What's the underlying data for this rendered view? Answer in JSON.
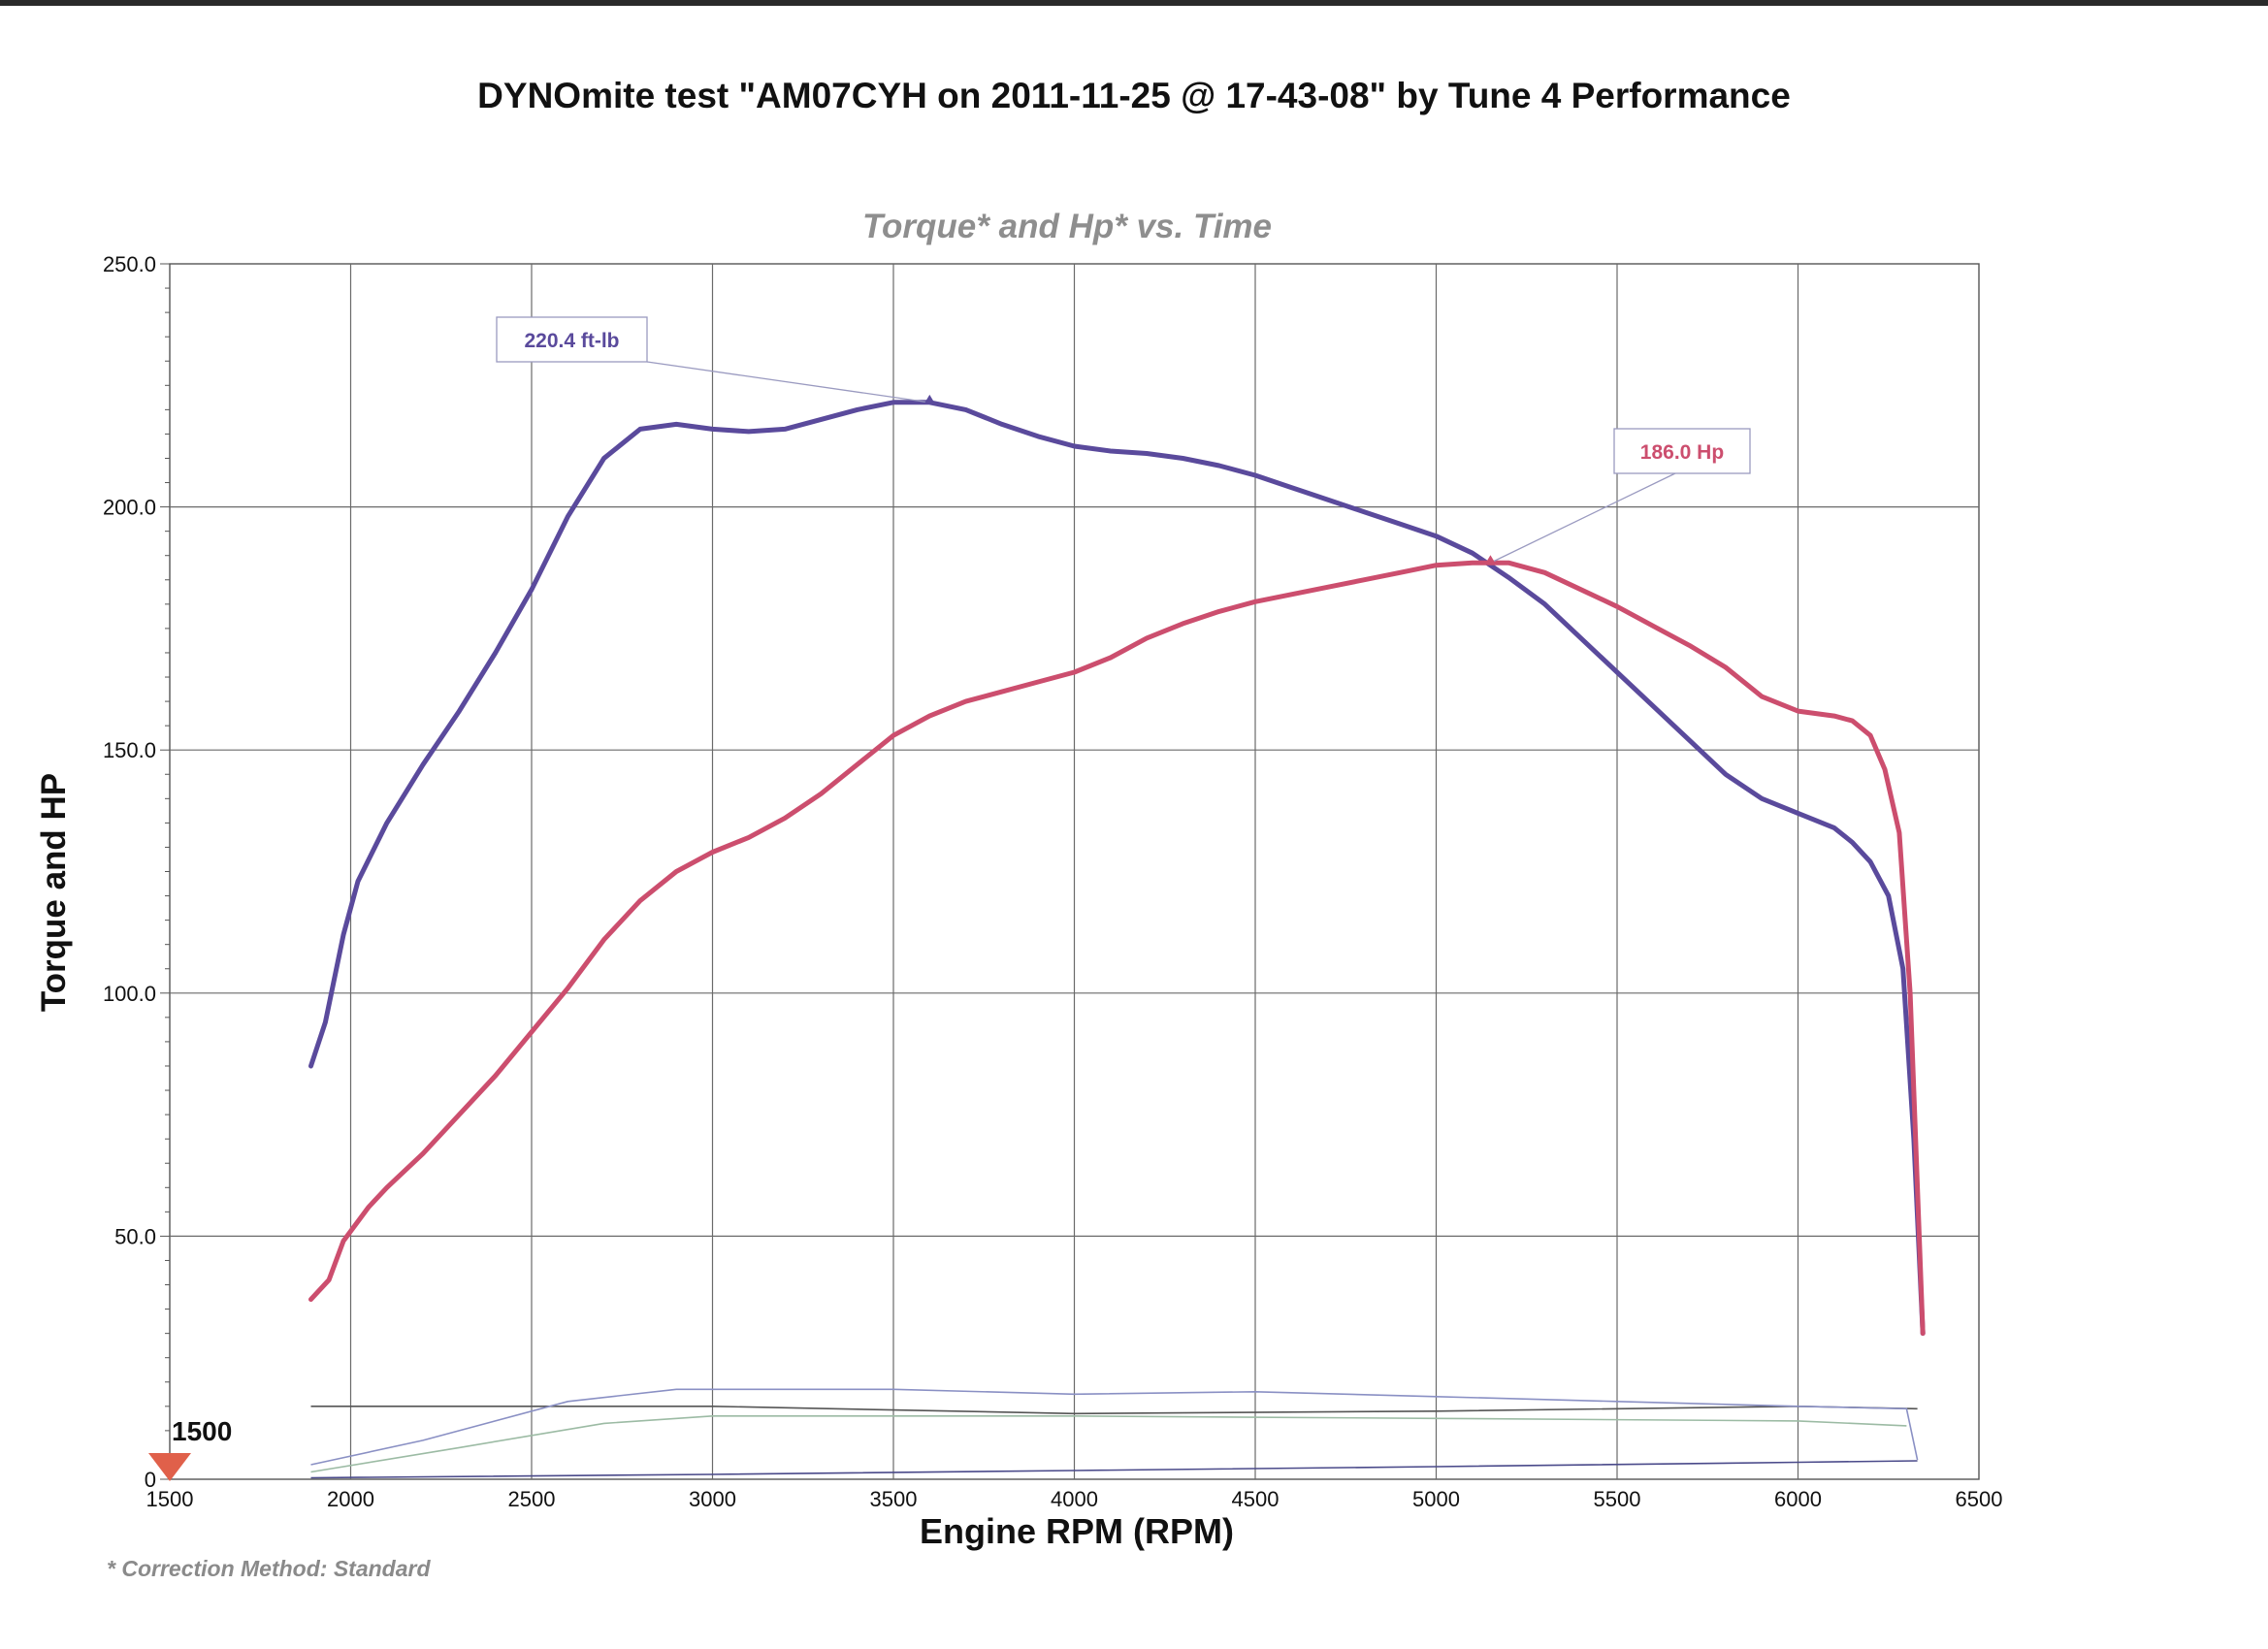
{
  "title": "DYNOmite test \"AM07CYH on 2011-11-25 @ 17-43-08\" by Tune 4 Performance",
  "footnote": "* Correction Method: Standard",
  "chart_data": {
    "type": "line",
    "title": "Torque* and Hp* vs. Time",
    "xlabel": "Engine RPM (RPM)",
    "ylabel": "Torque and HP",
    "xlim": [
      1500,
      6500
    ],
    "ylim": [
      0,
      250
    ],
    "x_ticks": [
      "1500",
      "2000",
      "2500",
      "3000",
      "3500",
      "4000",
      "4500",
      "5000",
      "5500",
      "6000",
      "6500"
    ],
    "y_ticks": [
      "250.0",
      "200.0",
      "150.0",
      "100.0",
      "50.0",
      "0"
    ],
    "grid": true,
    "start_marker_label": "1500",
    "series": [
      {
        "name": "Torque",
        "color": "#5a4a9c",
        "x": [
          1890,
          1930,
          1980,
          2020,
          2100,
          2200,
          2300,
          2400,
          2500,
          2600,
          2700,
          2800,
          2900,
          3000,
          3100,
          3200,
          3300,
          3400,
          3500,
          3600,
          3700,
          3800,
          3900,
          4000,
          4100,
          4200,
          4300,
          4400,
          4500,
          4600,
          4700,
          4800,
          4900,
          5000,
          5100,
          5200,
          5300,
          5400,
          5500,
          5600,
          5700,
          5800,
          5900,
          6000,
          6100,
          6150,
          6200,
          6250,
          6290,
          6320,
          6345
        ],
        "y": [
          85,
          94,
          112,
          123,
          135,
          147,
          158,
          170,
          183,
          198,
          210,
          216,
          217,
          216,
          215.5,
          216,
          218,
          220,
          221.5,
          221.5,
          220,
          217,
          214.5,
          212.5,
          211.5,
          211,
          210,
          208.5,
          206.5,
          204,
          201.5,
          199,
          196.5,
          194,
          190.5,
          185.5,
          180,
          173,
          166,
          159,
          152,
          145,
          140,
          137,
          134,
          131,
          127,
          120,
          105,
          70,
          30
        ]
      },
      {
        "name": "Hp",
        "color": "#cc4e6e",
        "x": [
          1890,
          1940,
          1980,
          2050,
          2100,
          2200,
          2300,
          2400,
          2500,
          2600,
          2700,
          2800,
          2900,
          3000,
          3100,
          3200,
          3300,
          3400,
          3500,
          3600,
          3700,
          3800,
          3900,
          4000,
          4100,
          4200,
          4300,
          4400,
          4500,
          4600,
          4700,
          4800,
          4900,
          5000,
          5100,
          5200,
          5300,
          5400,
          5500,
          5600,
          5700,
          5800,
          5900,
          6000,
          6100,
          6150,
          6200,
          6240,
          6280,
          6310,
          6330,
          6345
        ],
        "y": [
          37,
          41,
          49,
          56,
          60,
          67,
          75,
          83,
          92,
          101,
          111,
          119,
          125,
          129,
          132,
          136,
          141,
          147,
          153,
          157,
          160,
          162,
          164,
          166,
          169,
          173,
          176,
          178.5,
          180.5,
          182,
          183.5,
          185,
          186.5,
          188,
          188.5,
          188.5,
          186.5,
          183,
          179.5,
          175.5,
          171.5,
          167,
          161,
          158,
          157,
          156,
          153,
          146,
          133,
          100,
          60,
          30
        ]
      }
    ],
    "annotations": [
      {
        "label": "220.4 ft-lb",
        "series": "Torque",
        "x": 3600,
        "y": 221.5,
        "color": "#5a4a9c"
      },
      {
        "label": "186.0 Hp",
        "series": "Hp",
        "x": 5150,
        "y": 188.5,
        "color": "#cc4e6e"
      }
    ],
    "auxiliary_traces": [
      {
        "color": "#555555",
        "x": [
          1890,
          3000,
          4000,
          5000,
          6000,
          6330
        ],
        "y": [
          15,
          15,
          13.5,
          14,
          15,
          14.5
        ]
      },
      {
        "color": "#8a90c4",
        "x": [
          1890,
          2200,
          2600,
          2900,
          3500,
          4000,
          4500,
          5000,
          5500,
          6000,
          6300,
          6330
        ],
        "y": [
          3,
          8,
          16,
          18.5,
          18.5,
          17.5,
          18,
          17,
          16,
          15,
          14.5,
          4
        ]
      },
      {
        "color": "#9cbba4",
        "x": [
          1890,
          2300,
          2700,
          3000,
          4000,
          5000,
          6000,
          6300
        ],
        "y": [
          1.5,
          6.5,
          11.5,
          13,
          13,
          12.5,
          12,
          11
        ]
      },
      {
        "color": "#4a4a8a",
        "x": [
          1890,
          3000,
          4000,
          5000,
          6000,
          6330
        ],
        "y": [
          0.3,
          1,
          1.8,
          2.6,
          3.5,
          3.8
        ]
      }
    ]
  }
}
